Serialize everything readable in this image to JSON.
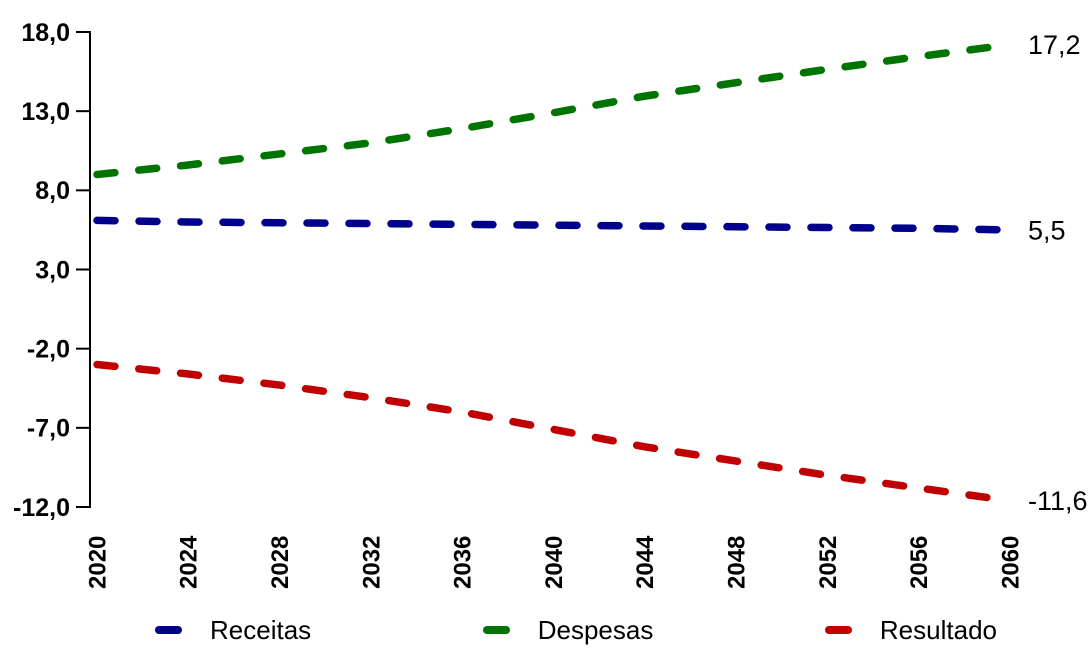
{
  "chart_data": {
    "type": "line",
    "title": "",
    "xlabel": "",
    "ylabel": "",
    "xlim": [
      2020,
      2060
    ],
    "ylim": [
      -12.0,
      18.0
    ],
    "grid": false,
    "legend_position": "bottom",
    "x": [
      2020,
      2024,
      2028,
      2032,
      2036,
      2040,
      2044,
      2048,
      2052,
      2056,
      2060
    ],
    "x_tick_labels": [
      "2020",
      "2024",
      "2028",
      "2032",
      "2036",
      "2040",
      "2044",
      "2048",
      "2052",
      "2056",
      "2060"
    ],
    "y_ticks": [
      18,
      13,
      8,
      3,
      -2,
      -7,
      -12
    ],
    "y_tick_labels": [
      "18,0",
      "13,0",
      "8,0",
      "3,0",
      "-2,0",
      "-7,0",
      "-12,0"
    ],
    "line_style": "dashed",
    "series": [
      {
        "name": "Receitas",
        "color": "#00008B",
        "end_label": "5,5",
        "values": [
          6.1,
          6.0,
          5.95,
          5.9,
          5.85,
          5.8,
          5.75,
          5.7,
          5.65,
          5.6,
          5.5
        ]
      },
      {
        "name": "Despesas",
        "color": "#007400",
        "end_label": "17,2",
        "values": [
          9.0,
          9.6,
          10.3,
          11.0,
          11.9,
          12.9,
          13.95,
          14.8,
          15.65,
          16.45,
          17.2
        ]
      },
      {
        "name": "Resultado",
        "color": "#C00000",
        "end_label": "-11,6",
        "values": [
          -3.0,
          -3.6,
          -4.3,
          -5.1,
          -6.0,
          -7.1,
          -8.2,
          -9.1,
          -10.0,
          -10.8,
          -11.6
        ]
      }
    ]
  },
  "colors": {
    "text": "#000000",
    "axis": "#000000",
    "background": "#FFFFFF"
  }
}
